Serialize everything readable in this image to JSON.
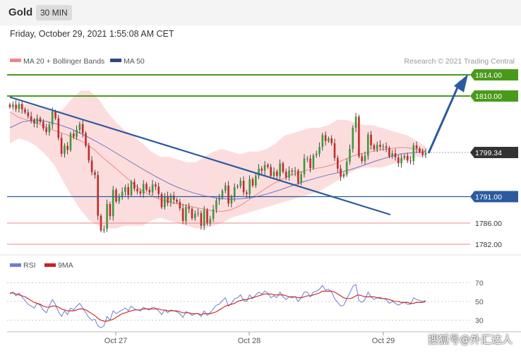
{
  "header": {
    "asset": "Gold",
    "timeframe": "30 MIN",
    "timestamp": "Friday, October 29, 2021 1:55:08 AM CET"
  },
  "legend": {
    "ma20_bb": "MA 20 + Bollinger Bands",
    "ma50": "MA 50",
    "rsi": "RSI",
    "rsi_ma": "9MA"
  },
  "copyright": "Research © 2021 Trading Central",
  "watermark": "搜狐号@外汇达人",
  "colors": {
    "bull": "#3b9a3b",
    "bear": "#c62a2a",
    "bb_fill": "#fbd7d7",
    "ma20": "#e88a8a",
    "ma50": "#6e76c8",
    "trend": "#2c5aa0",
    "resistance": "#4a9a1a",
    "support_blue": "#2c5aa0",
    "support_red": "#e06060",
    "price_tag": "#333333",
    "rsi": "#6a7fd0",
    "rsi_ma": "#cc1f1f"
  },
  "chart_data": [
    {
      "type": "candlestick",
      "title": "Gold",
      "timeframe": "30 MIN",
      "x_labels": [
        "Oct 27",
        "Oct 28",
        "Oct 29"
      ],
      "ylim": [
        1780.5,
        1817.5
      ],
      "levels": [
        {
          "value": 1814.0,
          "label": "1814.00",
          "kind": "resistance"
        },
        {
          "value": 1810.0,
          "label": "1810.00",
          "kind": "resistance"
        },
        {
          "value": 1799.34,
          "label": "1799.34",
          "kind": "last"
        },
        {
          "value": 1791.0,
          "label": "1791.00",
          "kind": "support"
        },
        {
          "value": 1786.0,
          "label": "1786.00",
          "kind": "support-minor"
        },
        {
          "value": 1782.0,
          "label": "1782.00",
          "kind": "support-minor"
        }
      ],
      "close": [
        1807.9,
        1808.4,
        1807.6,
        1808.5,
        1807.5,
        1806.9,
        1806.2,
        1805.4,
        1804.8,
        1805.8,
        1805.1,
        1803.9,
        1803.2,
        1804.6,
        1807.1,
        1805.8,
        1802.1,
        1799.1,
        1800.6,
        1799.8,
        1802.9,
        1802.3,
        1803.6,
        1804.7,
        1803.0,
        1800.6,
        1797.8,
        1795.6,
        1795.1,
        1787.4,
        1784.6,
        1784.9,
        1789.6,
        1787.3,
        1792.3,
        1790.1,
        1791.0,
        1791.9,
        1792.8,
        1791.3,
        1793.8,
        1792.5,
        1792.0,
        1791.6,
        1793.4,
        1792.3,
        1791.8,
        1793.3,
        1792.9,
        1791.5,
        1789.0,
        1791.1,
        1789.8,
        1791.2,
        1790.4,
        1790.0,
        1788.8,
        1786.4,
        1789.1,
        1788.7,
        1786.9,
        1787.8,
        1787.9,
        1785.5,
        1788.5,
        1785.9,
        1786.8,
        1788.6,
        1790.3,
        1790.8,
        1792.1,
        1793.1,
        1789.7,
        1790.9,
        1792.8,
        1793.0,
        1794.0,
        1791.8,
        1791.5,
        1794.3,
        1793.1,
        1794.9,
        1796.3,
        1795.9,
        1797.0,
        1796.6,
        1794.9,
        1795.7,
        1794.9,
        1797.3,
        1795.7,
        1794.6,
        1795.9,
        1795.7,
        1795.9,
        1793.6,
        1795.2,
        1798.2,
        1798.2,
        1796.4,
        1798.8,
        1799.1,
        1800.4,
        1802.6,
        1801.5,
        1802.0,
        1801.1,
        1798.3,
        1796.3,
        1794.8,
        1795.2,
        1797.6,
        1800.0,
        1804.0,
        1806.1,
        1798.6,
        1797.7,
        1798.7,
        1802.7,
        1800.7,
        1799.9,
        1800.8,
        1800.4,
        1800.5,
        1800.2,
        1798.6,
        1799.2,
        1798.4,
        1797.3,
        1798.3,
        1798.7,
        1797.8,
        1797.7,
        1800.7,
        1800.1,
        1799.5,
        1798.9,
        1799.3
      ],
      "ma20": [
        1807,
        1806,
        1805.5,
        1805,
        1804.3,
        1803.6,
        1803.1,
        1802.5,
        1801.8,
        1801.0,
        1799.8,
        1798.3,
        1797.0,
        1795.6,
        1794.2,
        1792.8,
        1791.7,
        1790.9,
        1790.3,
        1789.9,
        1789.6,
        1789.3,
        1788.9,
        1788.6,
        1788.3,
        1788.2,
        1788.5,
        1789.2,
        1790.2,
        1791.3,
        1792.4,
        1793.4,
        1794.2,
        1795.0,
        1795.5,
        1796.0,
        1796.3,
        1796.6,
        1797.0,
        1797.7,
        1798.4,
        1799.0,
        1799.3,
        1799.6,
        1799.9,
        1800.1,
        1800.3,
        1800.2,
        1799.9,
        1799.6
      ],
      "ma50": [
        1804.0,
        1805.1,
        1805.5,
        1805.2,
        1804.6,
        1803.8,
        1802.7,
        1801.5,
        1800.2,
        1798.8,
        1797.4,
        1796.0,
        1794.7,
        1793.5,
        1792.5,
        1791.7,
        1791.1,
        1790.7,
        1790.5,
        1790.6,
        1790.9,
        1791.5,
        1792.2,
        1793.0,
        1793.8,
        1794.5,
        1795.1,
        1795.6,
        1796.2,
        1797.0,
        1797.8,
        1798.5,
        1799.1,
        1799.3,
        1799.5
      ],
      "bb_upper": [
        1807,
        1808.5,
        1808.5,
        1808,
        1807.5,
        1807,
        1807.5,
        1809.5,
        1811,
        1811,
        1809.5,
        1807,
        1805,
        1803.5,
        1802.5,
        1801,
        1799.5,
        1798.5,
        1798.5,
        1798,
        1797.5,
        1797.5,
        1798.5,
        1799.5,
        1800,
        1799.5,
        1799,
        1799.5,
        1799.5,
        1800,
        1801,
        1802.5,
        1803,
        1803.5,
        1804,
        1804,
        1804.5,
        1805.5,
        1805.5,
        1805,
        1804.5,
        1804.5,
        1804,
        1803.5,
        1803,
        1802.5,
        1801.5,
        1800.5
      ],
      "bb_lower": [
        1801,
        1802,
        1801.5,
        1800.5,
        1799,
        1797,
        1794,
        1791,
        1788.5,
        1786.5,
        1785.5,
        1785,
        1785,
        1785.5,
        1785.5,
        1785.5,
        1786.5,
        1787,
        1786.5,
        1786,
        1785.5,
        1785,
        1785,
        1785.5,
        1786,
        1787,
        1787.5,
        1788,
        1788.5,
        1789,
        1789.5,
        1790,
        1790.5,
        1791,
        1791.5,
        1792,
        1793,
        1794,
        1795,
        1796,
        1796.5,
        1796.5,
        1796.5,
        1797,
        1797.5,
        1798,
        1798.5,
        1798.5
      ]
    },
    {
      "type": "line",
      "title": "RSI",
      "ylim": [
        20,
        80
      ],
      "yticks": [
        70,
        50,
        30
      ],
      "x_labels": [
        "Oct 27",
        "Oct 28",
        "Oct 29"
      ],
      "series": [
        {
          "name": "RSI",
          "values": [
            58,
            60,
            56,
            59,
            55,
            51,
            47,
            45,
            43,
            48,
            46,
            41,
            38,
            45,
            52,
            47,
            39,
            34,
            40,
            36,
            43,
            41,
            45,
            48,
            43,
            38,
            33,
            30,
            31,
            24,
            22,
            24,
            34,
            30,
            40,
            37,
            39,
            41,
            43,
            40,
            45,
            42,
            41,
            40,
            44,
            42,
            41,
            44,
            43,
            40,
            36,
            41,
            38,
            41,
            40,
            39,
            37,
            33,
            39,
            38,
            35,
            37,
            37,
            34,
            40,
            35,
            38,
            42,
            46,
            47,
            51,
            54,
            45,
            48,
            53,
            54,
            57,
            51,
            50,
            57,
            53,
            57,
            60,
            58,
            61,
            59,
            54,
            56,
            54,
            60,
            55,
            52,
            55,
            54,
            55,
            50,
            54,
            60,
            60,
            55,
            60,
            61,
            63,
            67,
            62,
            63,
            60,
            53,
            49,
            45,
            46,
            53,
            59,
            66,
            68,
            51,
            49,
            52,
            60,
            55,
            52,
            54,
            53,
            53,
            52,
            48,
            50,
            48,
            46,
            48,
            49,
            47,
            47,
            54,
            52,
            51,
            50,
            51
          ]
        },
        {
          "name": "9MA",
          "values": [
            59,
            59,
            58,
            57,
            56,
            55,
            53,
            51,
            49,
            48,
            47,
            45,
            44,
            44,
            45,
            45,
            44,
            42,
            41,
            40,
            40,
            40,
            41,
            42,
            42,
            41,
            39,
            37,
            35,
            32,
            30,
            29,
            29,
            30,
            31,
            33,
            35,
            37,
            38,
            39,
            40,
            41,
            41,
            41,
            42,
            42,
            42,
            42,
            42,
            42,
            41,
            41,
            40,
            40,
            40,
            40,
            39,
            38,
            38,
            38,
            37,
            37,
            37,
            36,
            37,
            37,
            37,
            38,
            39,
            41,
            43,
            45,
            46,
            47,
            48,
            50,
            51,
            52,
            52,
            53,
            54,
            55,
            56,
            57,
            58,
            58,
            58,
            57,
            57,
            57,
            57,
            56,
            55,
            55,
            55,
            54,
            54,
            55,
            56,
            56,
            57,
            58,
            59,
            61,
            61,
            61,
            61,
            60,
            58,
            56,
            54,
            53,
            53,
            54,
            56,
            57,
            56,
            55,
            55,
            55,
            55,
            54,
            54,
            53,
            53,
            52,
            51,
            50,
            50,
            49,
            49,
            49,
            48,
            48,
            49,
            49,
            49,
            50
          ]
        }
      ]
    }
  ]
}
